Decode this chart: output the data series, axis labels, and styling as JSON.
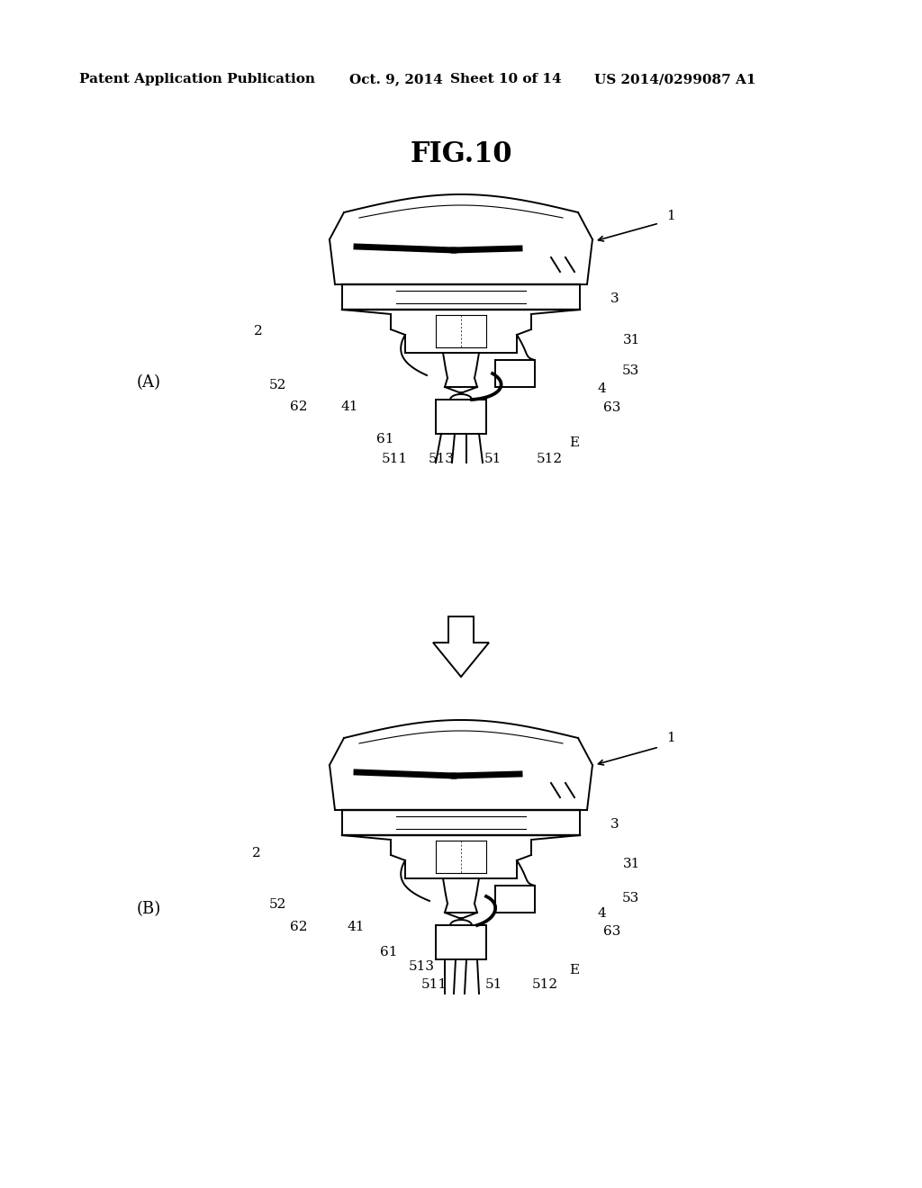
{
  "bg_color": "#ffffff",
  "line_color": "#000000",
  "header_text": "Patent Application Publication",
  "header_date": "Oct. 9, 2014",
  "header_sheet": "Sheet 10 of 14",
  "header_patent": "US 2014/0299087 A1",
  "fig_title": "FIG.10",
  "label_A": "(A)",
  "label_B": "(B)",
  "header_fontsize": 11,
  "title_fontsize": 22,
  "label_fontsize": 13,
  "ref_fontsize": 11,
  "fig_width": 10.24,
  "fig_height": 13.2
}
